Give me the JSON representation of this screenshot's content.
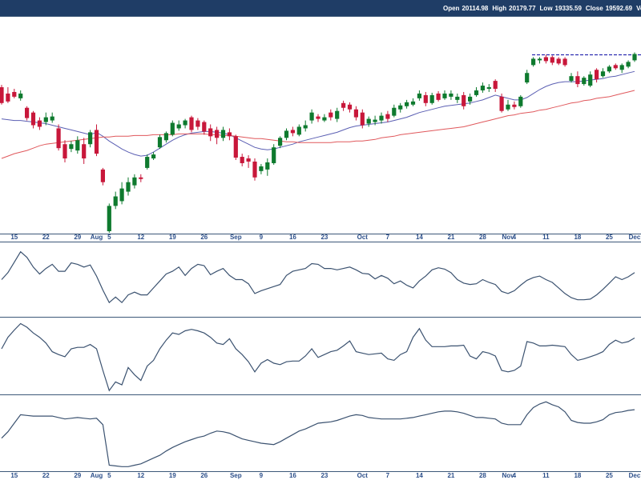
{
  "chart_data": [
    {
      "type": "candlestick",
      "readout": [
        {
          "label": "Open",
          "value": 20114.98
        },
        {
          "label": "High",
          "value": 20179.77
        },
        {
          "label": "Low",
          "value": 19335.59
        },
        {
          "label": "Close",
          "value": 19592.69
        },
        {
          "label": "Volume"
        }
      ],
      "categories": [
        null,
        null,
        "15",
        null,
        null,
        null,
        null,
        "22",
        null,
        null,
        null,
        null,
        "29",
        null,
        null,
        "Aug",
        null,
        "5",
        null,
        null,
        null,
        null,
        "12",
        null,
        null,
        null,
        null,
        "19",
        null,
        null,
        null,
        null,
        "26",
        null,
        null,
        null,
        null,
        "Sep",
        null,
        null,
        null,
        "9",
        null,
        null,
        null,
        null,
        "16",
        null,
        null,
        null,
        null,
        "23",
        null,
        null,
        null,
        null,
        null,
        "Oct",
        null,
        null,
        null,
        "7",
        null,
        null,
        null,
        null,
        "14",
        null,
        null,
        null,
        null,
        "21",
        null,
        null,
        null,
        null,
        "28",
        null,
        null,
        null,
        "Nov",
        "4",
        null,
        null,
        null,
        null,
        "11",
        null,
        null,
        null,
        null,
        "18",
        null,
        null,
        null,
        null,
        "25",
        null,
        null,
        null,
        "Dec"
      ],
      "open": [
        19590,
        19510,
        19530,
        19450,
        19330,
        19270,
        19170,
        19150,
        19170,
        19070,
        18870,
        18810,
        18790,
        18870,
        18870,
        19050,
        18550,
        17770,
        18090,
        18150,
        18270,
        18350,
        18450,
        18570,
        18690,
        18830,
        18920,
        18990,
        19070,
        19110,
        19210,
        19170,
        19150,
        19070,
        19050,
        18950,
        19020,
        18970,
        18710,
        18690,
        18650,
        18530,
        18550,
        18630,
        18850,
        18950,
        19050,
        18990,
        19070,
        19170,
        19220,
        19170,
        19270,
        19190,
        19390,
        19370,
        19310,
        19270,
        19130,
        19150,
        19170,
        19250,
        19230,
        19310,
        19350,
        19370,
        19450,
        19490,
        19390,
        19510,
        19450,
        19470,
        19430,
        19490,
        19410,
        19490,
        19550,
        19570,
        19670,
        19470,
        19310,
        19370,
        19350,
        19650,
        19870,
        19930,
        19970,
        19970,
        19950,
        19950,
        19670,
        19730,
        19630,
        19610,
        19810,
        19730,
        19790,
        19870,
        19810,
        19850,
        19930
      ],
      "high": [
        19620,
        19590,
        19570,
        19550,
        19350,
        19290,
        19210,
        19270,
        19270,
        19120,
        18920,
        18910,
        18970,
        18950,
        19050,
        19120,
        18570,
        18120,
        18270,
        18390,
        18450,
        18490,
        18490,
        18740,
        18770,
        18990,
        19030,
        19170,
        19170,
        19190,
        19230,
        19200,
        19170,
        19120,
        19090,
        19090,
        19070,
        18990,
        18750,
        18730,
        18690,
        18620,
        18690,
        18870,
        18970,
        19070,
        19090,
        19120,
        19170,
        19310,
        19250,
        19250,
        19310,
        19330,
        19420,
        19400,
        19350,
        19310,
        19220,
        19230,
        19270,
        19290,
        19370,
        19390,
        19430,
        19450,
        19550,
        19530,
        19520,
        19540,
        19550,
        19550,
        19510,
        19530,
        19510,
        19590,
        19650,
        19630,
        19690,
        19510,
        19430,
        19410,
        19490,
        19810,
        19970,
        19970,
        20000,
        19990,
        19970,
        19970,
        19770,
        19790,
        19730,
        19790,
        19830,
        19830,
        19870,
        19890,
        19890,
        19930,
        20030
      ],
      "low": [
        19370,
        19390,
        19450,
        19420,
        19170,
        19070,
        19050,
        19110,
        19140,
        18790,
        18640,
        18770,
        18750,
        18620,
        18830,
        18720,
        18350,
        17750,
        18050,
        18110,
        18220,
        18310,
        18390,
        18550,
        18670,
        18810,
        18890,
        18970,
        19040,
        19070,
        19020,
        19050,
        18990,
        18910,
        18870,
        18910,
        18920,
        18670,
        18590,
        18570,
        18410,
        18490,
        18470,
        18610,
        18820,
        18920,
        18970,
        18970,
        19030,
        19130,
        19150,
        19150,
        19170,
        19150,
        19290,
        19270,
        19170,
        19070,
        19090,
        19110,
        19130,
        19150,
        19210,
        19270,
        19320,
        19350,
        19420,
        19350,
        19370,
        19410,
        19430,
        19430,
        19390,
        19310,
        19370,
        19470,
        19520,
        19530,
        19530,
        19270,
        19290,
        19310,
        19330,
        19630,
        19850,
        19890,
        19890,
        19870,
        19870,
        19850,
        19650,
        19590,
        19610,
        19590,
        19650,
        19710,
        19770,
        19810,
        19770,
        19830,
        19910
      ],
      "close": [
        19390,
        19410,
        19470,
        19510,
        19200,
        19110,
        19090,
        19210,
        19220,
        18820,
        18690,
        18870,
        18920,
        18690,
        19020,
        18750,
        18390,
        18090,
        18210,
        18310,
        18390,
        18450,
        18430,
        18710,
        18740,
        18960,
        19010,
        19140,
        19120,
        19170,
        19050,
        19090,
        19030,
        18970,
        18950,
        19050,
        18970,
        18700,
        18630,
        18650,
        18450,
        18590,
        18640,
        18830,
        18950,
        19040,
        19010,
        19090,
        19110,
        19270,
        19190,
        19210,
        19210,
        19290,
        19330,
        19310,
        19210,
        19110,
        19190,
        19180,
        19230,
        19190,
        19330,
        19360,
        19400,
        19410,
        19510,
        19390,
        19490,
        19430,
        19510,
        19510,
        19470,
        19350,
        19470,
        19550,
        19610,
        19590,
        19570,
        19290,
        19370,
        19340,
        19470,
        19770,
        19950,
        19950,
        19920,
        19900,
        19890,
        19870,
        19730,
        19630,
        19710,
        19750,
        19690,
        19790,
        19850,
        19830,
        19870,
        19910,
        20010
      ],
      "up_color": "#0e7a2e",
      "down_color": "#c8173a",
      "series": [
        {
          "color": "#5b5fb3",
          "values": [
            19190,
            19180,
            19170,
            19170,
            19160,
            19150,
            19140,
            19130,
            19110,
            19090,
            19070,
            19050,
            19030,
            19010,
            18990,
            19020,
            18970,
            18910,
            18860,
            18810,
            18770,
            18740,
            18720,
            18730,
            18770,
            18820,
            18870,
            18920,
            18960,
            18990,
            19010,
            19020,
            19030,
            19030,
            19020,
            19010,
            18990,
            18950,
            18910,
            18870,
            18830,
            18810,
            18800,
            18810,
            18830,
            18850,
            18870,
            18900,
            18920,
            18940,
            18960,
            18980,
            19000,
            19020,
            19050,
            19080,
            19100,
            19110,
            19120,
            19130,
            19140,
            19150,
            19170,
            19190,
            19210,
            19240,
            19270,
            19290,
            19310,
            19330,
            19350,
            19360,
            19370,
            19380,
            19390,
            19410,
            19430,
            19460,
            19490,
            19470,
            19450,
            19430,
            19430,
            19460,
            19510,
            19560,
            19600,
            19630,
            19650,
            19660,
            19660,
            19660,
            19670,
            19680,
            19690,
            19700,
            19720,
            19730,
            19750,
            19770,
            19790
          ]
        },
        {
          "color": "#e0585c",
          "values": [
            18690,
            18720,
            18750,
            18770,
            18790,
            18820,
            18850,
            18870,
            18880,
            18890,
            18900,
            18910,
            18920,
            18930,
            18940,
            18950,
            18960,
            18960,
            18970,
            18970,
            18970,
            18980,
            18980,
            18980,
            18990,
            18990,
            18990,
            18990,
            19000,
            19000,
            19000,
            19000,
            19000,
            18990,
            18990,
            18980,
            18980,
            18970,
            18960,
            18950,
            18940,
            18940,
            18930,
            18920,
            18910,
            18900,
            18900,
            18890,
            18890,
            18890,
            18890,
            18890,
            18890,
            18900,
            18900,
            18900,
            18910,
            18910,
            18920,
            18930,
            18950,
            18960,
            18970,
            18990,
            19000,
            19010,
            19020,
            19030,
            19040,
            19050,
            19060,
            19070,
            19080,
            19090,
            19110,
            19130,
            19150,
            19170,
            19190,
            19210,
            19230,
            19240,
            19260,
            19270,
            19280,
            19300,
            19310,
            19330,
            19350,
            19370,
            19390,
            19400,
            19420,
            19430,
            19450,
            19460,
            19470,
            19490,
            19510,
            19530,
            19550
          ]
        }
      ],
      "hline": {
        "value": 20000,
        "color": "#2b2bb0"
      },
      "ylim": [
        17750,
        20470
      ]
    },
    {
      "type": "line",
      "ylim": [
        0,
        100
      ],
      "series": [
        {
          "color": "#3b5270",
          "values": [
            50,
            60,
            75,
            90,
            82,
            68,
            58,
            66,
            72,
            62,
            62,
            74,
            72,
            68,
            71,
            55,
            35,
            17,
            25,
            17,
            28,
            32,
            28,
            28,
            38,
            48,
            58,
            62,
            68,
            56,
            66,
            72,
            70,
            57,
            62,
            66,
            56,
            50,
            50,
            44,
            30,
            34,
            37,
            40,
            43,
            56,
            62,
            64,
            66,
            73,
            72,
            66,
            66,
            64,
            66,
            68,
            64,
            59,
            58,
            51,
            56,
            52,
            44,
            48,
            42,
            38,
            48,
            55,
            64,
            67,
            65,
            60,
            50,
            45,
            43,
            44,
            50,
            46,
            43,
            33,
            30,
            34,
            42,
            49,
            53,
            55,
            50,
            46,
            38,
            30,
            24,
            21,
            21,
            22,
            28,
            36,
            45,
            54,
            50,
            54,
            60
          ]
        }
      ]
    },
    {
      "type": "line",
      "ylim": [
        0,
        100
      ],
      "series": [
        {
          "color": "#3b5270",
          "values": [
            60,
            76,
            86,
            95,
            90,
            82,
            76,
            68,
            56,
            52,
            49,
            60,
            62,
            62,
            66,
            60,
            30,
            2,
            14,
            10,
            34,
            24,
            16,
            36,
            44,
            60,
            72,
            82,
            80,
            85,
            87,
            85,
            82,
            76,
            68,
            66,
            74,
            60,
            52,
            42,
            28,
            40,
            45,
            40,
            38,
            42,
            43,
            43,
            50,
            60,
            48,
            52,
            56,
            58,
            64,
            71,
            56,
            54,
            52,
            53,
            54,
            46,
            44,
            52,
            56,
            76,
            88,
            72,
            63,
            63,
            63,
            64,
            64,
            65,
            50,
            46,
            56,
            54,
            50,
            30,
            28,
            30,
            36,
            70,
            68,
            64,
            64,
            65,
            64,
            63,
            52,
            44,
            46,
            49,
            52,
            56,
            66,
            72,
            68,
            70,
            75
          ]
        }
      ]
    },
    {
      "type": "line",
      "ylim": [
        0,
        100
      ],
      "categories": [
        null,
        null,
        "15",
        null,
        null,
        null,
        null,
        "22",
        null,
        null,
        null,
        null,
        "29",
        null,
        null,
        "Aug",
        null,
        "5",
        null,
        null,
        null,
        null,
        "12",
        null,
        null,
        null,
        null,
        "19",
        null,
        null,
        null,
        null,
        "26",
        null,
        null,
        null,
        null,
        "Sep",
        null,
        null,
        null,
        "9",
        null,
        null,
        null,
        null,
        "16",
        null,
        null,
        null,
        null,
        "23",
        null,
        null,
        null,
        null,
        null,
        "Oct",
        null,
        null,
        null,
        "7",
        null,
        null,
        null,
        null,
        "14",
        null,
        null,
        null,
        null,
        "21",
        null,
        null,
        null,
        null,
        "28",
        null,
        null,
        null,
        "Nov",
        "4",
        null,
        null,
        null,
        null,
        "11",
        null,
        null,
        null,
        null,
        "18",
        null,
        null,
        null,
        null,
        "25",
        null,
        null,
        null,
        "Dec"
      ],
      "series": [
        {
          "color": "#3b5270",
          "values": [
            43,
            52,
            64,
            76,
            75,
            74,
            74,
            74,
            74,
            72,
            70,
            71,
            72,
            71,
            70,
            71,
            62,
            5,
            4,
            3,
            3,
            5,
            7,
            11,
            15,
            19,
            25,
            30,
            34,
            38,
            41,
            44,
            46,
            50,
            53,
            52,
            50,
            46,
            42,
            40,
            38,
            36,
            35,
            34,
            38,
            43,
            48,
            53,
            56,
            60,
            64,
            65,
            66,
            68,
            71,
            74,
            76,
            75,
            72,
            71,
            70,
            70,
            70,
            70,
            71,
            72,
            74,
            76,
            78,
            80,
            81,
            81,
            80,
            78,
            75,
            72,
            72,
            71,
            70,
            64,
            62,
            62,
            62,
            76,
            86,
            91,
            94,
            90,
            87,
            80,
            68,
            65,
            64,
            64,
            66,
            69,
            76,
            79,
            80,
            82,
            83
          ]
        }
      ]
    }
  ]
}
